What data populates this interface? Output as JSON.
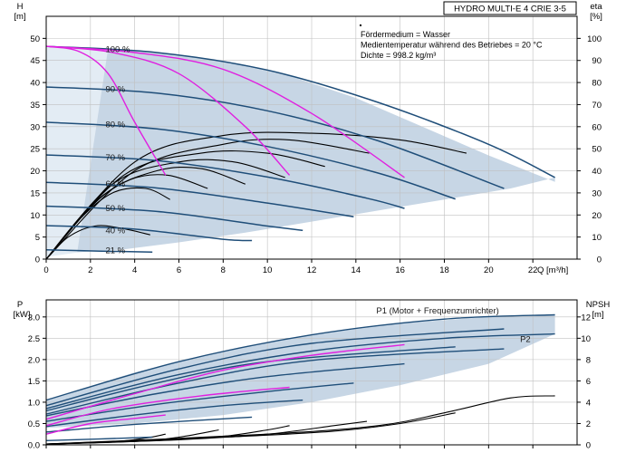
{
  "title_box": "HYDRO MULTI-E 4 CRIE 3-5",
  "info_lines": [
    "Fördermedium = Wasser",
    "Medientemperatur während des Betriebes = 20 °C",
    "Dichte = 998.2 kg/m³"
  ],
  "colors": {
    "envelope": "#c7d6e5",
    "envelope_light": "#e3ecf4",
    "qh_curve": "#1f4e79",
    "eta_curve": "#000000",
    "max_curve": "#e020e0",
    "power_curve": "#1f4e79",
    "npsh_curve": "#000000"
  },
  "chart_data": [
    {
      "type": "line",
      "name": "qh",
      "xlabel": "Q [m³/h]",
      "ylabel_left": "H\n[m]",
      "ylabel_right": "eta\n[%]",
      "xlim": [
        0,
        24
      ],
      "ylim": [
        0,
        55
      ],
      "ylim_right": [
        0,
        110
      ],
      "xticks": [
        0,
        2,
        4,
        6,
        8,
        10,
        12,
        14,
        16,
        18,
        20,
        22
      ],
      "yticks": [
        0,
        5,
        10,
        15,
        20,
        25,
        30,
        35,
        40,
        45,
        50
      ],
      "yticks_right": [
        0,
        10,
        20,
        30,
        40,
        50,
        60,
        70,
        80,
        90,
        100
      ],
      "speed_labels": [
        {
          "text": "100 %",
          "q": 2.6,
          "h": 47.5
        },
        {
          "text": "90 %",
          "q": 2.6,
          "h": 38.5
        },
        {
          "text": "80 %",
          "q": 2.6,
          "h": 30.5
        },
        {
          "text": "70 %",
          "q": 2.6,
          "h": 23
        },
        {
          "text": "60 %",
          "q": 2.6,
          "h": 17
        },
        {
          "text": "50 %",
          "q": 2.6,
          "h": 11.5
        },
        {
          "text": "40 %",
          "q": 2.6,
          "h": 6.5
        },
        {
          "text": "21 %",
          "q": 2.6,
          "h": 2
        }
      ],
      "envelope": [
        [
          0,
          48.2
        ],
        [
          2.5,
          47.8
        ],
        [
          5,
          46.8
        ],
        [
          8,
          44.8
        ],
        [
          11,
          41.5
        ],
        [
          14,
          36.5
        ],
        [
          17,
          30
        ],
        [
          20,
          23.5
        ],
        [
          23,
          17.5
        ],
        [
          23,
          18.5
        ],
        [
          21,
          16
        ],
        [
          18,
          13.5
        ],
        [
          15,
          11
        ],
        [
          12,
          8.5
        ],
        [
          9,
          6
        ],
        [
          6,
          3.8
        ],
        [
          3.5,
          2.2
        ],
        [
          1.2,
          1.5
        ]
      ],
      "qh_curves": [
        {
          "speed": 100,
          "points": [
            [
              0,
              48.2
            ],
            [
              5,
              46.8
            ],
            [
              10,
              42.8
            ],
            [
              15,
              35.5
            ],
            [
              20,
              26
            ],
            [
              23,
              18.5
            ]
          ]
        },
        {
          "speed": 90,
          "points": [
            [
              0,
              39
            ],
            [
              5,
              37.6
            ],
            [
              10,
              33.6
            ],
            [
              15,
              26.8
            ],
            [
              20.7,
              16
            ]
          ]
        },
        {
          "speed": 80,
          "points": [
            [
              0,
              31
            ],
            [
              5,
              29.5
            ],
            [
              10,
              25.5
            ],
            [
              15,
              19.5
            ],
            [
              18.5,
              13.6
            ]
          ]
        },
        {
          "speed": 70,
          "points": [
            [
              0,
              23.6
            ],
            [
              5,
              22.3
            ],
            [
              10,
              18.6
            ],
            [
              14.5,
              13.8
            ],
            [
              16.2,
              11.5
            ]
          ]
        },
        {
          "speed": 60,
          "points": [
            [
              0,
              17.4
            ],
            [
              5,
              16.1
            ],
            [
              10,
              12.7
            ],
            [
              13.9,
              9.6
            ]
          ]
        },
        {
          "speed": 50,
          "points": [
            [
              0,
              12
            ],
            [
              5,
              10.8
            ],
            [
              10,
              7.5
            ],
            [
              11.6,
              6.5
            ]
          ]
        },
        {
          "speed": 40,
          "points": [
            [
              0,
              7.6
            ],
            [
              4,
              6.8
            ],
            [
              8,
              4.5
            ],
            [
              9.3,
              4.2
            ]
          ]
        },
        {
          "speed": 21,
          "points": [
            [
              0,
              2.1
            ],
            [
              2.5,
              1.8
            ],
            [
              4.8,
              1.6
            ]
          ]
        }
      ],
      "eta_curves": [
        {
          "points": [
            [
              0,
              0
            ],
            [
              4,
              44
            ],
            [
              8,
              56
            ],
            [
              12,
              57
            ],
            [
              16,
              54
            ],
            [
              19,
              48
            ]
          ]
        },
        {
          "points": [
            [
              0,
              0
            ],
            [
              4,
              40
            ],
            [
              8,
              52
            ],
            [
              11,
              54
            ],
            [
              14.6,
              48
            ]
          ]
        },
        {
          "points": [
            [
              0,
              0
            ],
            [
              3.5,
              38
            ],
            [
              7,
              48
            ],
            [
              10,
              48
            ],
            [
              12.6,
              42
            ]
          ]
        },
        {
          "points": [
            [
              0,
              0
            ],
            [
              3,
              34
            ],
            [
              6,
              44
            ],
            [
              8.5,
              44
            ],
            [
              10.8,
              37
            ]
          ]
        },
        {
          "points": [
            [
              0,
              0
            ],
            [
              2.6,
              29
            ],
            [
              5,
              40
            ],
            [
              7,
              41
            ],
            [
              9,
              34
            ]
          ]
        },
        {
          "points": [
            [
              0,
              0
            ],
            [
              2,
              24
            ],
            [
              3.8,
              36
            ],
            [
              5.5,
              38
            ],
            [
              7.3,
              32
            ]
          ]
        },
        {
          "points": [
            [
              0,
              0
            ],
            [
              1.5,
              18
            ],
            [
              3,
              30
            ],
            [
              4.5,
              32
            ],
            [
              5.6,
              27
            ]
          ]
        },
        {
          "points": [
            [
              0,
              0
            ],
            [
              1,
              10
            ],
            [
              2.2,
              15
            ],
            [
              3.4,
              14
            ],
            [
              4.7,
              11
            ]
          ]
        }
      ],
      "max_curves": [
        {
          "points": [
            [
              0,
              48.2
            ],
            [
              1.5,
              47
            ],
            [
              2.8,
              42
            ],
            [
              4,
              31
            ],
            [
              5.4,
              19
            ]
          ]
        },
        {
          "points": [
            [
              0,
              48.2
            ],
            [
              3,
              46.8
            ],
            [
              6,
              42
            ],
            [
              9,
              30
            ],
            [
              11,
              19
            ]
          ]
        },
        {
          "points": [
            [
              0,
              48.2
            ],
            [
              4,
              46.8
            ],
            [
              8,
              43
            ],
            [
              12,
              33
            ],
            [
              16.2,
              18.5
            ]
          ]
        }
      ]
    },
    {
      "type": "line",
      "name": "power",
      "ylabel_left": "P\n[kW]",
      "ylabel_right": "NPSH\n[m]",
      "xlim": [
        0,
        24
      ],
      "ylim": [
        0,
        3.4
      ],
      "ylim_right": [
        0,
        13.6
      ],
      "yticks": [
        0,
        0.5,
        1.0,
        1.5,
        2.0,
        2.5,
        3.0
      ],
      "yticks_right": [
        0,
        2,
        4,
        6,
        8,
        10,
        12
      ],
      "series_labels": [
        {
          "text": "P1 (Motor + Frequenzumrichter)",
          "q": 14.8,
          "p": 3.15
        },
        {
          "text": "P2",
          "q": 21.3,
          "p": 2.48
        }
      ],
      "envelope": [
        [
          0,
          1.05
        ],
        [
          4,
          1.7
        ],
        [
          8,
          2.2
        ],
        [
          12,
          2.58
        ],
        [
          16,
          2.85
        ],
        [
          20,
          3.0
        ],
        [
          23,
          3.05
        ],
        [
          23,
          2.6
        ],
        [
          20,
          1.9
        ],
        [
          16,
          1.4
        ],
        [
          12,
          1.0
        ],
        [
          8,
          0.7
        ],
        [
          4,
          0.5
        ],
        [
          0,
          0.4
        ]
      ],
      "p1_curves": [
        {
          "points": [
            [
              0,
              1.05
            ],
            [
              6,
              1.95
            ],
            [
              12,
              2.58
            ],
            [
              18,
              2.95
            ],
            [
              23,
              3.05
            ]
          ]
        },
        {
          "points": [
            [
              0,
              0.92
            ],
            [
              6,
              1.78
            ],
            [
              12,
              2.38
            ],
            [
              20.7,
              2.72
            ]
          ]
        },
        {
          "points": [
            [
              0,
              0.8
            ],
            [
              5,
              1.45
            ],
            [
              10,
              1.95
            ],
            [
              18.5,
              2.3
            ]
          ]
        },
        {
          "points": [
            [
              0,
              0.68
            ],
            [
              5,
              1.2
            ],
            [
              10,
              1.6
            ],
            [
              16.2,
              1.9
            ]
          ]
        },
        {
          "points": [
            [
              0,
              0.55
            ],
            [
              5,
              0.95
            ],
            [
              10,
              1.25
            ],
            [
              13.9,
              1.45
            ]
          ]
        },
        {
          "points": [
            [
              0,
              0.43
            ],
            [
              4,
              0.7
            ],
            [
              8,
              0.92
            ],
            [
              11.6,
              1.05
            ]
          ]
        },
        {
          "points": [
            [
              0,
              0.3
            ],
            [
              4,
              0.48
            ],
            [
              9.3,
              0.65
            ]
          ]
        },
        {
          "points": [
            [
              0,
              0.1
            ],
            [
              2.5,
              0.14
            ],
            [
              4.8,
              0.18
            ]
          ]
        }
      ],
      "p2_curves": [
        {
          "points": [
            [
              0,
              0.85
            ],
            [
              6,
              1.65
            ],
            [
              12,
              2.2
            ],
            [
              18,
              2.5
            ],
            [
              23,
              2.6
            ]
          ]
        },
        {
          "points": [
            [
              0,
              0.72
            ],
            [
              6,
              1.45
            ],
            [
              12,
              1.98
            ],
            [
              20.7,
              2.25
            ]
          ]
        }
      ],
      "max_curves": [
        {
          "points": [
            [
              0,
              0.6
            ],
            [
              4,
              1.2
            ],
            [
              8,
              1.75
            ],
            [
              12,
              2.1
            ],
            [
              16.2,
              2.35
            ]
          ]
        },
        {
          "points": [
            [
              0,
              0.45
            ],
            [
              3,
              0.85
            ],
            [
              7,
              1.15
            ],
            [
              11,
              1.35
            ]
          ]
        },
        {
          "points": [
            [
              0,
              0.25
            ],
            [
              2,
              0.5
            ],
            [
              4,
              0.62
            ],
            [
              5.4,
              0.7
            ]
          ]
        }
      ],
      "npsh_curves": [
        {
          "points": [
            [
              0,
              0.02
            ],
            [
              10,
              0.25
            ],
            [
              15,
              0.45
            ],
            [
              18,
              0.75
            ],
            [
              21,
              1.1
            ],
            [
              23,
              1.15
            ]
          ]
        },
        {
          "points": [
            [
              0,
              0.02
            ],
            [
              8,
              0.18
            ],
            [
              13,
              0.32
            ],
            [
              16,
              0.5
            ],
            [
              18.5,
              0.75
            ]
          ]
        },
        {
          "points": [
            [
              0,
              0.02
            ],
            [
              6,
              0.12
            ],
            [
              10,
              0.25
            ],
            [
              13,
              0.45
            ],
            [
              14.5,
              0.55
            ]
          ]
        },
        {
          "points": [
            [
              0,
              0.02
            ],
            [
              5,
              0.1
            ],
            [
              8,
              0.2
            ],
            [
              10,
              0.35
            ],
            [
              11,
              0.45
            ]
          ]
        },
        {
          "points": [
            [
              0,
              0.02
            ],
            [
              4,
              0.08
            ],
            [
              6,
              0.18
            ],
            [
              7.8,
              0.35
            ]
          ]
        },
        {
          "points": [
            [
              0,
              0.02
            ],
            [
              3,
              0.07
            ],
            [
              4.5,
              0.16
            ],
            [
              5.4,
              0.25
            ]
          ]
        }
      ]
    }
  ]
}
